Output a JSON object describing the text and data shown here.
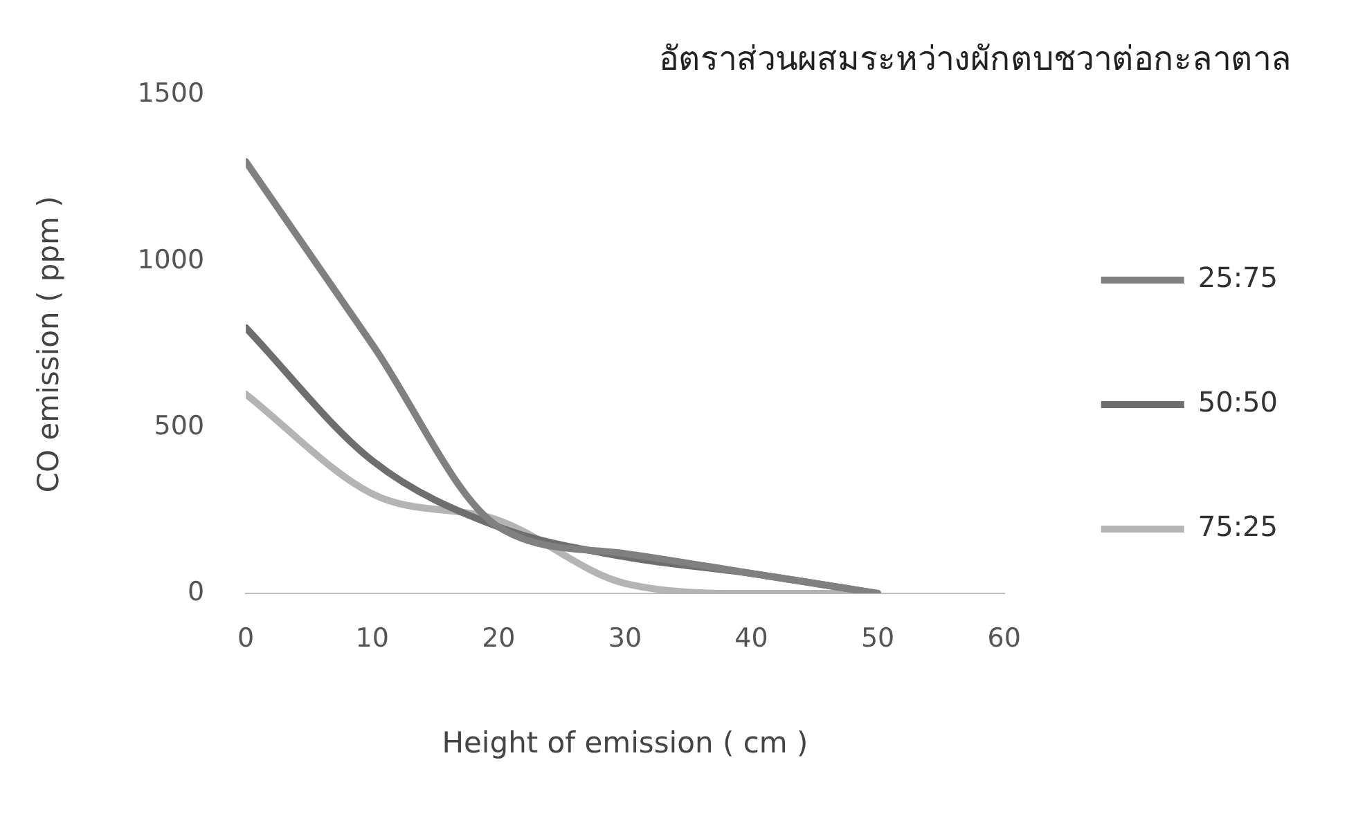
{
  "chart_data": {
    "type": "line",
    "title": "อัตราส่วนผสมระหว่างผักตบชวาต่อกะลาตาล",
    "xlabel": "Height of emission ( cm )",
    "ylabel": "CO emission ( ppm )",
    "x": [
      0,
      10,
      20,
      30,
      40,
      50
    ],
    "series": [
      {
        "name": "25:75",
        "color": "#808080",
        "values": [
          1300,
          750,
          200,
          120,
          60,
          0
        ]
      },
      {
        "name": "50:50",
        "color": "#6e6e6e",
        "values": [
          800,
          400,
          200,
          110,
          60,
          0
        ]
      },
      {
        "name": "75:25",
        "color": "#b4b4b4",
        "values": [
          600,
          300,
          220,
          30,
          0,
          0
        ]
      }
    ],
    "xlim": [
      0,
      60
    ],
    "xticks": [
      0,
      10,
      20,
      30,
      40,
      50,
      60
    ],
    "ylim": [
      0,
      1500
    ],
    "yticks": [
      0,
      500,
      1000,
      1500
    ],
    "grid": false,
    "legend": "right",
    "marker": "none",
    "line_style": "solid"
  }
}
